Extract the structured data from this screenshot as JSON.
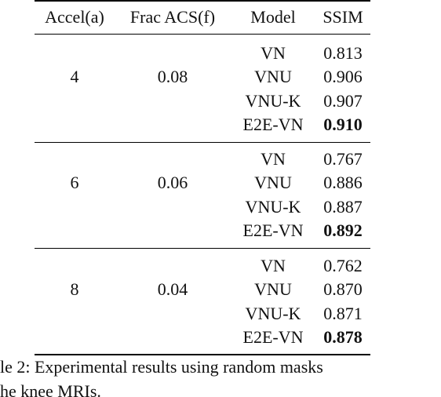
{
  "table": {
    "header": [
      "Accel(a)",
      "Frac ACS(f)",
      "Model",
      "SSIM"
    ],
    "groups": [
      {
        "accel": "4",
        "frac": "0.08",
        "rows": [
          [
            "VN",
            "0.813"
          ],
          [
            "VNU",
            "0.906"
          ],
          [
            "VNU-K",
            "0.907"
          ],
          [
            "E2E-VN",
            "0.910"
          ]
        ]
      },
      {
        "accel": "6",
        "frac": "0.06",
        "rows": [
          [
            "VN",
            "0.767"
          ],
          [
            "VNU",
            "0.886"
          ],
          [
            "VNU-K",
            "0.887"
          ],
          [
            "E2E-VN",
            "0.892"
          ]
        ]
      },
      {
        "accel": "8",
        "frac": "0.04",
        "rows": [
          [
            "VN",
            "0.762"
          ],
          [
            "VNU",
            "0.870"
          ],
          [
            "VNU-K",
            "0.871"
          ],
          [
            "E2E-VN",
            "0.878"
          ]
        ]
      }
    ]
  },
  "caption": [
    "le 2: Experimental results using random masks",
    "he knee MRIs."
  ]
}
